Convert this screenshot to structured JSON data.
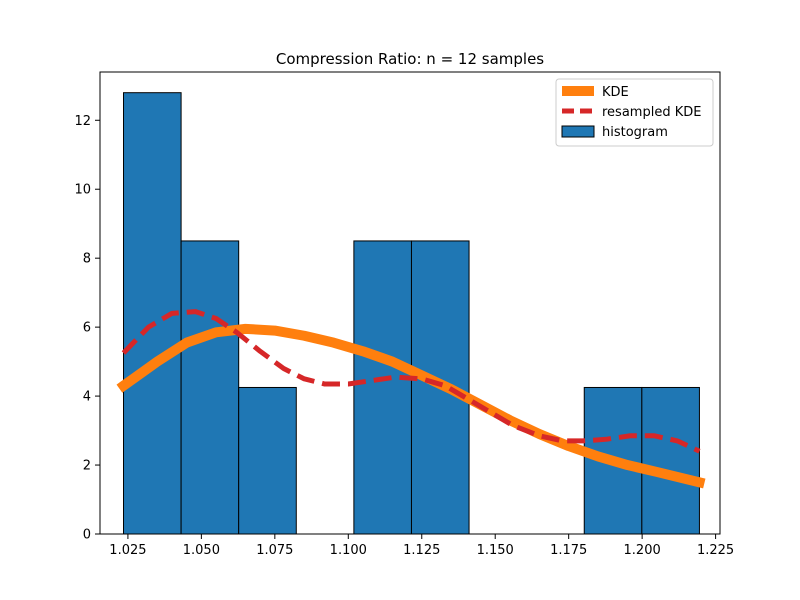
{
  "chart_data": {
    "type": "bar",
    "title": "Compression Ratio: n = 12 samples",
    "xlabel": "",
    "ylabel": "",
    "xlim": [
      1.0155,
      1.2265
    ],
    "ylim": [
      0,
      13.4
    ],
    "grid": false,
    "legend_placement": "top-right",
    "x_ticks": [
      1.025,
      1.05,
      1.075,
      1.1,
      1.125,
      1.15,
      1.175,
      1.2,
      1.225
    ],
    "x_tick_labels": [
      "1.025",
      "1.050",
      "1.075",
      "1.100",
      "1.125",
      "1.150",
      "1.175",
      "1.200",
      "1.225"
    ],
    "y_ticks": [
      0,
      2,
      4,
      6,
      8,
      10,
      12
    ],
    "y_tick_labels": [
      "0",
      "2",
      "4",
      "6",
      "8",
      "10",
      "12"
    ],
    "histogram": {
      "name": "histogram",
      "color": "#1f77b4",
      "edge_color": "#000000",
      "bin_edges": [
        1.0235,
        1.0431,
        1.0627,
        1.0823,
        1.1019,
        1.1215,
        1.1411,
        1.1607,
        1.1803,
        1.1999,
        1.2195
      ],
      "values": [
        12.8,
        8.5,
        4.25,
        0,
        8.5,
        8.5,
        0,
        0,
        4.25,
        4.25
      ]
    },
    "series": [
      {
        "name": "KDE",
        "color": "#ff7f0e",
        "style": "solid",
        "x": [
          1.0235,
          1.035,
          1.045,
          1.055,
          1.065,
          1.075,
          1.085,
          1.095,
          1.105,
          1.115,
          1.125,
          1.135,
          1.145,
          1.155,
          1.165,
          1.175,
          1.185,
          1.195,
          1.205,
          1.2195
        ],
        "y": [
          4.3,
          5.0,
          5.55,
          5.85,
          5.95,
          5.9,
          5.75,
          5.55,
          5.3,
          5.0,
          4.6,
          4.2,
          3.75,
          3.3,
          2.9,
          2.55,
          2.25,
          2.0,
          1.8,
          1.5
        ]
      },
      {
        "name": "resampled KDE",
        "color": "#d62728",
        "style": "dashed",
        "x": [
          1.0235,
          1.032,
          1.04,
          1.048,
          1.055,
          1.062,
          1.07,
          1.078,
          1.085,
          1.092,
          1.1,
          1.108,
          1.116,
          1.125,
          1.133,
          1.14,
          1.148,
          1.156,
          1.165,
          1.173,
          1.18,
          1.188,
          1.196,
          1.204,
          1.212,
          1.2195
        ],
        "y": [
          5.25,
          6.0,
          6.4,
          6.45,
          6.25,
          5.85,
          5.3,
          4.8,
          4.5,
          4.35,
          4.35,
          4.45,
          4.55,
          4.5,
          4.3,
          3.95,
          3.55,
          3.15,
          2.85,
          2.7,
          2.7,
          2.75,
          2.85,
          2.85,
          2.7,
          2.4
        ]
      }
    ],
    "legend": [
      "KDE",
      "resampled KDE",
      "histogram"
    ]
  }
}
